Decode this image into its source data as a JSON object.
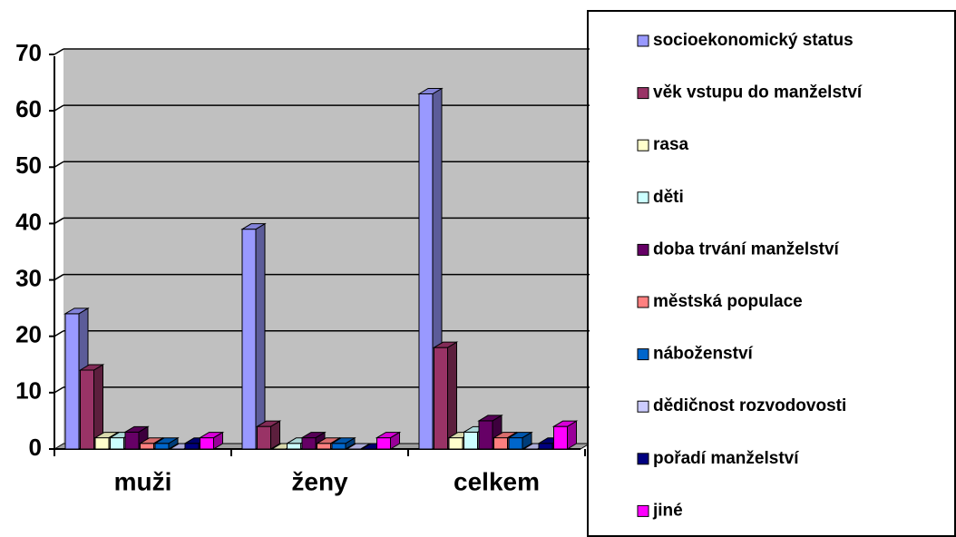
{
  "chart_data": {
    "type": "bar3d",
    "categories": [
      "muži",
      "ženy",
      "celkem"
    ],
    "series": [
      {
        "name": "socioekonomický status",
        "color": "#9999ff",
        "values": [
          24,
          39,
          63
        ]
      },
      {
        "name": "věk vstupu do manželství",
        "color": "#993366",
        "values": [
          14,
          4,
          18
        ]
      },
      {
        "name": "rasa",
        "color": "#ffffcc",
        "values": [
          2,
          0,
          2
        ]
      },
      {
        "name": "děti",
        "color": "#ccffff",
        "values": [
          2,
          1,
          3
        ]
      },
      {
        "name": "doba trvání manželství",
        "color": "#660066",
        "values": [
          3,
          2,
          5
        ]
      },
      {
        "name": "městská populace",
        "color": "#ff8080",
        "values": [
          1,
          1,
          2
        ]
      },
      {
        "name": "náboženství",
        "color": "#0066cc",
        "values": [
          1,
          1,
          2
        ]
      },
      {
        "name": "dědičnost rozvodovosti",
        "color": "#ccccff",
        "values": [
          0,
          0,
          0
        ]
      },
      {
        "name": "pořadí manželství",
        "color": "#000080",
        "values": [
          1,
          0,
          1
        ]
      },
      {
        "name": "jiné",
        "color": "#ff00ff",
        "values": [
          2,
          2,
          4
        ]
      }
    ],
    "ylim": [
      0,
      70
    ],
    "yticks": [
      0,
      10,
      20,
      30,
      40,
      50,
      60,
      70
    ],
    "grid": true,
    "legend": "right"
  }
}
